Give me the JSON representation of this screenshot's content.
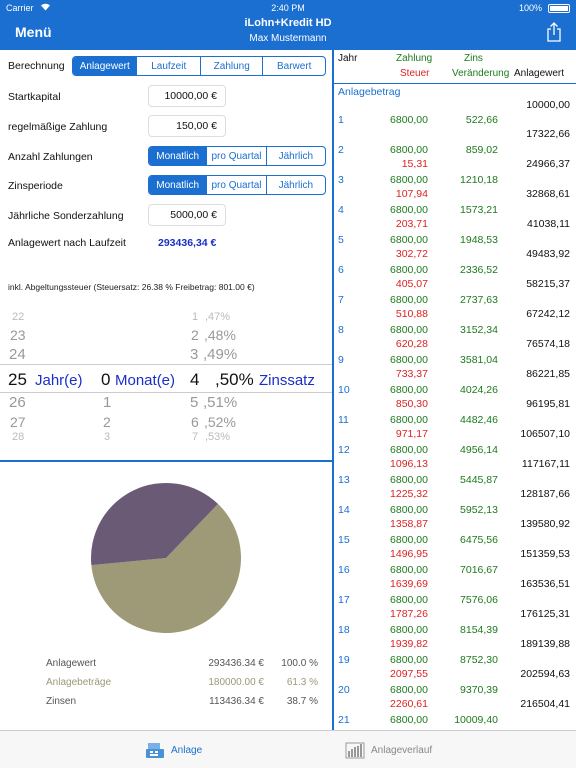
{
  "status": {
    "carrier": "Carrier",
    "time": "2:40 PM",
    "battery": "100%"
  },
  "header": {
    "menu": "Menü",
    "title": "iLohn+Kredit HD",
    "subtitle": "Max Mustermann"
  },
  "form": {
    "berechnung_label": "Berechnung",
    "berechnung_options": [
      "Anlagewert",
      "Laufzeit",
      "Zahlung",
      "Barwert"
    ],
    "startkapital_label": "Startkapital",
    "startkapital_value": "10000,00 €",
    "zahlung_label": "regelmäßige Zahlung",
    "zahlung_value": "150,00 €",
    "anzahl_label": "Anzahl Zahlungen",
    "anzahl_options": [
      "Monatlich",
      "pro Quartal",
      "Jährlich"
    ],
    "zinsperiode_label": "Zinsperiode",
    "zinsperiode_options": [
      "Monatlich",
      "pro Quartal",
      "Jährlich"
    ],
    "sonder_label": "Jährliche Sonderzahlung",
    "sonder_value": "5000,00 €",
    "anlagewert_label": "Anlagewert nach Laufzeit",
    "anlagewert_value": "293436,34 €",
    "note": "inkl. Abgeltungssteuer (Steuersatz: 26.38 % Freibetrag: 801.00 €)"
  },
  "picker": {
    "years_above": [
      "22",
      "23",
      "24"
    ],
    "years_sel": "25",
    "years_below": [
      "26",
      "27",
      "28"
    ],
    "years_unit": "Jahr(e)",
    "months_above": [
      "",
      "",
      ""
    ],
    "months_sel": "0",
    "months_below": [
      "1",
      "2",
      "3"
    ],
    "months_unit": "Monat(e)",
    "rate_int_above": [
      "1",
      "2",
      "3"
    ],
    "rate_dec_above": [
      ",47%",
      ",48%",
      ",49%"
    ],
    "rate_int_sel": "4",
    "rate_dec_sel": ",50%",
    "rate_int_below": [
      "5",
      "6",
      "7"
    ],
    "rate_dec_below": [
      ",51%",
      ",52%",
      ",53%"
    ],
    "rate_unit": "Zinssatz"
  },
  "summary": {
    "rows": [
      {
        "label": "Anlagewert",
        "value": "293436.34 €",
        "pct": "100.0 %",
        "color": "#555"
      },
      {
        "label": "Anlagebeträge",
        "value": "180000.00 €",
        "pct": "61.3 %",
        "color": "#9c9878"
      },
      {
        "label": "Zinsen",
        "value": "113436.34 €",
        "pct": "38.7 %",
        "color": "#555"
      }
    ],
    "pie_colors": {
      "anlagebetraege": "#9e9a78",
      "zinsen": "#6a5a76"
    },
    "pie_fraction_anlagebetraege": 0.613
  },
  "table": {
    "headers": {
      "jahr": "Jahr",
      "zahlung": "Zahlung",
      "steuer": "Steuer",
      "zins": "Zins",
      "veraenderung": "Veränderung",
      "anlagewert": "Anlagewert"
    },
    "anlagebetrag_label": "Anlagebetrag",
    "anlagebetrag_value": "10000,00",
    "rows": [
      {
        "jahr": "1",
        "zahlung": "6800,00",
        "zins": "522,66",
        "steuer": "",
        "wert": "17322,66"
      },
      {
        "jahr": "2",
        "zahlung": "6800,00",
        "zins": "859,02",
        "steuer": "15,31",
        "wert": "24966,37"
      },
      {
        "jahr": "3",
        "zahlung": "6800,00",
        "zins": "1210,18",
        "steuer": "107,94",
        "wert": "32868,61"
      },
      {
        "jahr": "4",
        "zahlung": "6800,00",
        "zins": "1573,21",
        "steuer": "203,71",
        "wert": "41038,11"
      },
      {
        "jahr": "5",
        "zahlung": "6800,00",
        "zins": "1948,53",
        "steuer": "302,72",
        "wert": "49483,92"
      },
      {
        "jahr": "6",
        "zahlung": "6800,00",
        "zins": "2336,52",
        "steuer": "405,07",
        "wert": "58215,37"
      },
      {
        "jahr": "7",
        "zahlung": "6800,00",
        "zins": "2737,63",
        "steuer": "510,88",
        "wert": "67242,12"
      },
      {
        "jahr": "8",
        "zahlung": "6800,00",
        "zins": "3152,34",
        "steuer": "620,28",
        "wert": "76574,18"
      },
      {
        "jahr": "9",
        "zahlung": "6800,00",
        "zins": "3581,04",
        "steuer": "733,37",
        "wert": "86221,85"
      },
      {
        "jahr": "10",
        "zahlung": "6800,00",
        "zins": "4024,26",
        "steuer": "850,30",
        "wert": "96195,81"
      },
      {
        "jahr": "11",
        "zahlung": "6800,00",
        "zins": "4482,46",
        "steuer": "971,17",
        "wert": "106507,10"
      },
      {
        "jahr": "12",
        "zahlung": "6800,00",
        "zins": "4956,14",
        "steuer": "1096,13",
        "wert": "117167,11"
      },
      {
        "jahr": "13",
        "zahlung": "6800,00",
        "zins": "5445,87",
        "steuer": "1225,32",
        "wert": "128187,66"
      },
      {
        "jahr": "14",
        "zahlung": "6800,00",
        "zins": "5952,13",
        "steuer": "1358,87",
        "wert": "139580,92"
      },
      {
        "jahr": "15",
        "zahlung": "6800,00",
        "zins": "6475,56",
        "steuer": "1496,95",
        "wert": "151359,53"
      },
      {
        "jahr": "16",
        "zahlung": "6800,00",
        "zins": "7016,67",
        "steuer": "1639,69",
        "wert": "163536,51"
      },
      {
        "jahr": "17",
        "zahlung": "6800,00",
        "zins": "7576,06",
        "steuer": "1787,26",
        "wert": "176125,31"
      },
      {
        "jahr": "18",
        "zahlung": "6800,00",
        "zins": "8154,39",
        "steuer": "1939,82",
        "wert": "189139,88"
      },
      {
        "jahr": "19",
        "zahlung": "6800,00",
        "zins": "8752,30",
        "steuer": "2097,55",
        "wert": "202594,63"
      },
      {
        "jahr": "20",
        "zahlung": "6800,00",
        "zins": "9370,39",
        "steuer": "2260,61",
        "wert": "216504,41"
      },
      {
        "jahr": "21",
        "zahlung": "6800,00",
        "zins": "10009,40",
        "steuer": "",
        "wert": ""
      }
    ]
  },
  "tabs": [
    {
      "label": "Anlage",
      "icon": "cash-register-icon",
      "active": true
    },
    {
      "label": "Anlageverlauf",
      "icon": "bar-chart-icon",
      "active": false
    }
  ],
  "colors": {
    "accent": "#1b6fd0",
    "green": "#1e7a1e",
    "red": "#dd2222",
    "result": "#1a2fc9"
  }
}
